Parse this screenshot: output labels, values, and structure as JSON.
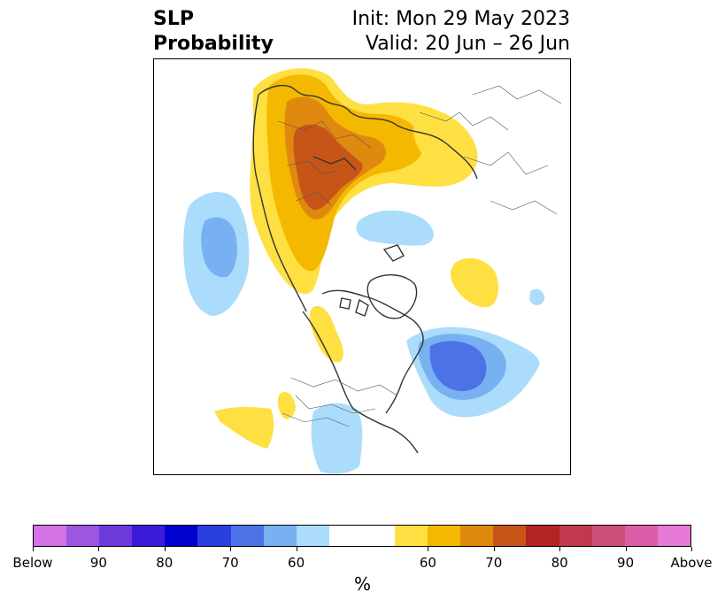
{
  "header": {
    "title_line1": "SLP",
    "title_line2": "Probability",
    "init": "Init: Mon 29 May 2023",
    "valid": "Valid: 20 Jun – 26 Jun"
  },
  "colorbar": {
    "colors": [
      "#d472e6",
      "#9b57e1",
      "#6e3adc",
      "#3c1bd8",
      "#0000cf",
      "#2a3fdd",
      "#4c73e6",
      "#78b1f2",
      "#abdcfb",
      "#ffffff",
      "#ffffff",
      "#ffe042",
      "#f5b800",
      "#e0890f",
      "#c85518",
      "#b12424",
      "#c23851",
      "#cd4f7a",
      "#db5fa8",
      "#e87ad7"
    ],
    "tick_labels": [
      "Below",
      "90",
      "80",
      "70",
      "60",
      "60",
      "70",
      "80",
      "90",
      "Above"
    ],
    "unit_label": "%"
  },
  "map": {
    "palette": {
      "orange_light": "#ffe042",
      "orange_mid": "#f5b800",
      "orange_dark": "#e0890f",
      "orange_deep": "#c85518",
      "blue_light": "#abdcfb",
      "blue_mid": "#78b1f2",
      "blue_dark": "#4c73e6",
      "coast": "#333333"
    }
  }
}
